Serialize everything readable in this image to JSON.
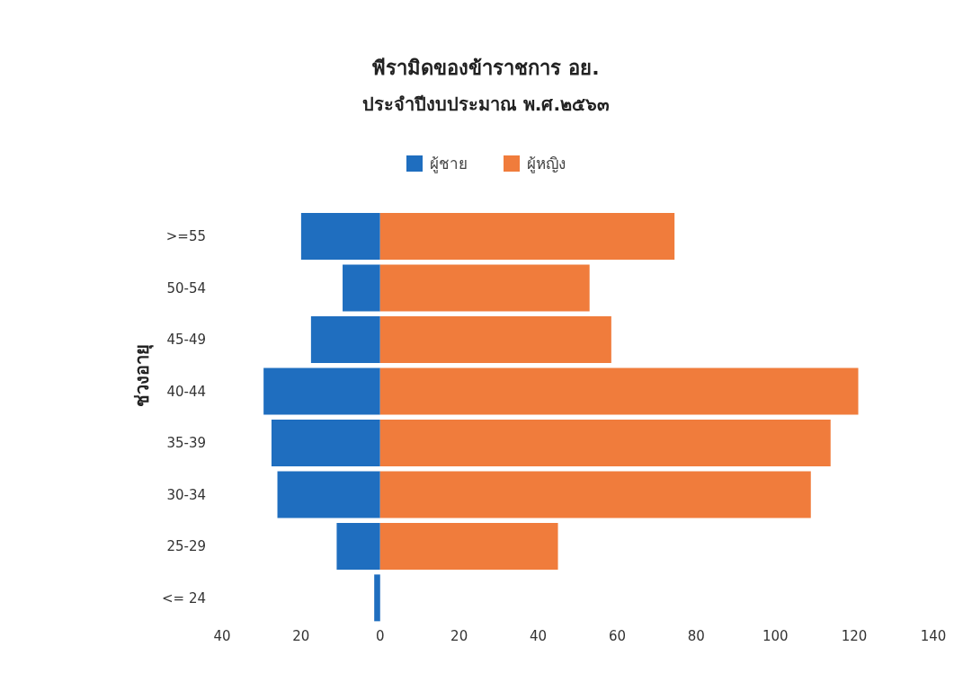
{
  "chart_data": {
    "type": "bar",
    "orientation": "horizontal",
    "stacked": true,
    "title": "พีรามิดของข้าราชการ อย.",
    "subtitle": "ประจำปีงบประมาณ พ.ศ.๒๕๖๓",
    "ylabel": "ช่วงอายุ",
    "categories": [
      ">=55",
      "50-54",
      "45-49",
      "40-44",
      "35-39",
      "30-34",
      "25-29",
      "<= 24"
    ],
    "series": [
      {
        "name": "ผู้ชาย",
        "color": "#1f6ebf",
        "values": [
          -20,
          -9.5,
          -17.5,
          -29.5,
          -27.5,
          -26,
          -11,
          -1.5
        ]
      },
      {
        "name": "ผู้หญิง",
        "color": "#f07c3c",
        "values": [
          74.5,
          53,
          58.5,
          121,
          114,
          109,
          45,
          0
        ]
      }
    ],
    "xlim": [
      -40,
      140
    ],
    "xticks": [
      {
        "value": -40,
        "label": "40"
      },
      {
        "value": -20,
        "label": "20"
      },
      0,
      20,
      40,
      60,
      80,
      100,
      120,
      140
    ],
    "legend": "top",
    "grid": false
  }
}
